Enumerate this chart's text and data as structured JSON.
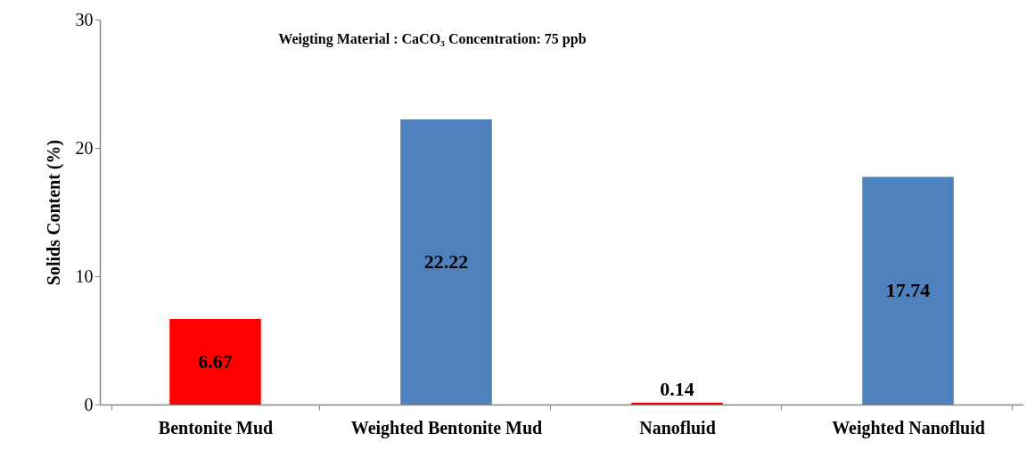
{
  "chart_data": {
    "type": "bar",
    "ylabel": "Solids Content (%)",
    "annotations": [
      "Weigting Material : CaCO₃   Concentration: 75 ppb"
    ],
    "categories": [
      "Bentonite Mud",
      "Weighted Bentonite Mud",
      "Nanofluid",
      "Weighted Nanofluid"
    ],
    "values": [
      6.67,
      22.22,
      0.14,
      17.74
    ],
    "colors": [
      "#ff0000",
      "#4f81bd",
      "#ff0000",
      "#4f81bd"
    ],
    "ylim": [
      0,
      30
    ],
    "yticks": [
      0,
      10,
      20,
      30
    ],
    "grid": false,
    "data_labels": true
  }
}
